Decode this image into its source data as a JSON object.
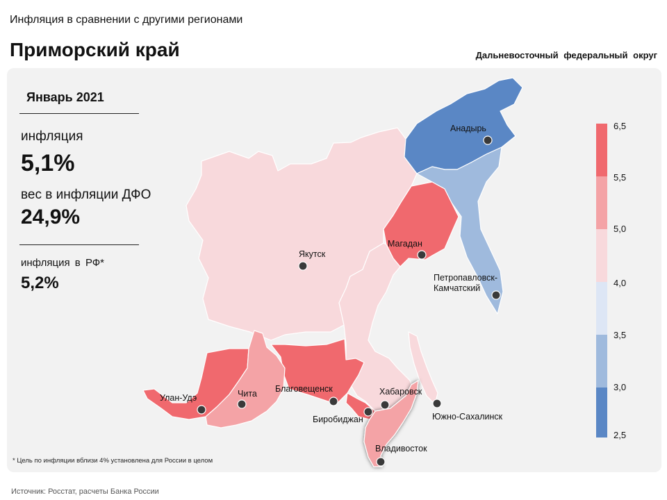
{
  "header": {
    "subtitle": "Инфляция в сравнении с другими регионами",
    "title": "Приморский край",
    "district": "Дальневосточный федеральный округ"
  },
  "stats": {
    "period": "Январь 2021",
    "inflation_label": "инфляция",
    "inflation_value": "5,1%",
    "weight_label": "вес в инфляции ДФО",
    "weight_value": "24,9%",
    "rf_label": "инфляция в РФ*",
    "rf_value": "5,2%"
  },
  "footnote": "* Цель по инфляции вблизи 4% установлена для России в целом",
  "source": "Источник: Росстат, расчеты Банка России",
  "colors": {
    "band_55_65": "#f0696e",
    "band_50_55": "#f4a3a6",
    "band_40_50": "#f8d9dc",
    "band_35_40": "#dde6f5",
    "band_30_35": "#9fbadd",
    "band_25_30": "#5a87c5"
  },
  "legend": {
    "ticks": [
      "6,5",
      "5,5",
      "5,0",
      "4,0",
      "3,5",
      "3,0",
      "2,5"
    ]
  },
  "regions": [
    {
      "id": "chukotka",
      "band": "band_25_30"
    },
    {
      "id": "kamchatka",
      "band": "band_30_35"
    },
    {
      "id": "magadan",
      "band": "band_55_65"
    },
    {
      "id": "yakutia",
      "band": "band_40_50"
    },
    {
      "id": "khabarovsk",
      "band": "band_40_50"
    },
    {
      "id": "sakhalin",
      "band": "band_40_50"
    },
    {
      "id": "amur",
      "band": "band_55_65"
    },
    {
      "id": "jewish",
      "band": "band_55_65"
    },
    {
      "id": "buryatia",
      "band": "band_55_65"
    },
    {
      "id": "zabaikalsky",
      "band": "band_50_55"
    },
    {
      "id": "primorye",
      "band": "band_50_55"
    }
  ],
  "cities": {
    "anadyr": "Анадырь",
    "magadan": "Магадан",
    "yakutsk": "Якутск",
    "petropavlovsk_1": "Петропавловск-",
    "petropavlovsk_2": "Камчатский",
    "ulan_ude": "Улан-Удэ",
    "chita": "Чита",
    "blagoveshchensk": "Благовещенск",
    "khabarovsk": "Хабаровск",
    "birobidzhan": "Биробиджан",
    "yuzhno": "Южно-Сахалинск",
    "vladivostok": "Владивосток"
  }
}
